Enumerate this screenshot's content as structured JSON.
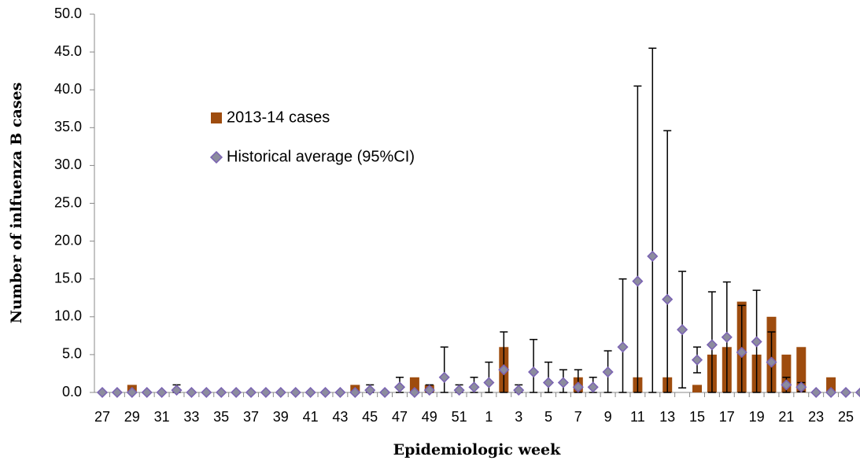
{
  "chart_data": {
    "type": "bar",
    "x_label": "Epidemiologic week",
    "y_label": "Number of inlfuenza B cases",
    "categories": [
      "27",
      null,
      "29",
      null,
      "31",
      null,
      "33",
      null,
      "35",
      null,
      "37",
      null,
      "39",
      null,
      "41",
      null,
      "43",
      null,
      "45",
      null,
      "47",
      null,
      "49",
      null,
      "51",
      null,
      "1",
      null,
      "3",
      null,
      "5",
      null,
      "7",
      null,
      "9",
      null,
      "11",
      null,
      "13",
      null,
      "15",
      null,
      "17",
      null,
      "19",
      null,
      "21",
      null,
      "23",
      null,
      "25",
      null
    ],
    "ylim": [
      0,
      50
    ],
    "yticks": [
      {
        "value": 0,
        "label": "0.0"
      },
      {
        "value": 5,
        "label": "5.0"
      },
      {
        "value": 10,
        "label": "10.0"
      },
      {
        "value": 15,
        "label": "15.0"
      },
      {
        "value": 20,
        "label": "20.0"
      },
      {
        "value": 25,
        "label": "25.0"
      },
      {
        "value": 30,
        "label": "30.0"
      },
      {
        "value": 35,
        "label": "35.0"
      },
      {
        "value": 40,
        "label": "40.0"
      },
      {
        "value": 45,
        "label": "45.0"
      },
      {
        "value": 50,
        "label": "50.0"
      }
    ],
    "series": [
      {
        "name": "2013-14 cases",
        "type": "bar",
        "color": "#9e4c0e",
        "values": [
          0,
          0,
          1,
          0,
          0,
          0,
          0,
          0,
          0,
          0,
          0,
          0,
          0,
          0,
          0,
          0,
          0,
          1,
          0,
          0,
          0,
          2,
          1,
          0,
          0,
          0,
          0,
          6,
          0,
          0,
          0,
          0,
          2,
          0,
          0,
          0,
          2,
          0,
          2,
          0,
          1,
          5,
          6,
          12,
          5,
          10,
          5,
          6,
          0,
          2,
          0,
          0
        ]
      },
      {
        "name": "Historical average (95%CI)",
        "type": "scatter",
        "color": "#8c8c9e",
        "edge_color": "#7a62b3",
        "values": [
          0,
          0,
          0,
          0,
          0,
          0.3,
          0,
          0,
          0,
          0,
          0,
          0,
          0,
          0,
          0,
          0,
          0,
          0,
          0.3,
          0,
          0.7,
          0,
          0.3,
          2,
          0.3,
          0.7,
          1.3,
          3,
          0.3,
          2.7,
          1.3,
          1.3,
          0.7,
          0.7,
          2.7,
          6,
          14.7,
          18,
          12.3,
          8.3,
          4.3,
          6.3,
          7.3,
          5.3,
          6.7,
          4,
          1,
          0.7,
          0,
          0,
          0,
          0
        ],
        "error": [
          0,
          0,
          0,
          0,
          0,
          0.7,
          0,
          0,
          0,
          0,
          0,
          0,
          0,
          0,
          0,
          0,
          0,
          0,
          0.7,
          0,
          1.3,
          0,
          0.7,
          4,
          0.7,
          1.3,
          2.7,
          5,
          0.7,
          4.3,
          2.7,
          1.7,
          2.3,
          1.3,
          2.8,
          9,
          25.8,
          27.5,
          22.3,
          7.7,
          1.7,
          7,
          7.3,
          6.2,
          6.8,
          4,
          1,
          0.6,
          0,
          0,
          0,
          0
        ]
      }
    ]
  }
}
